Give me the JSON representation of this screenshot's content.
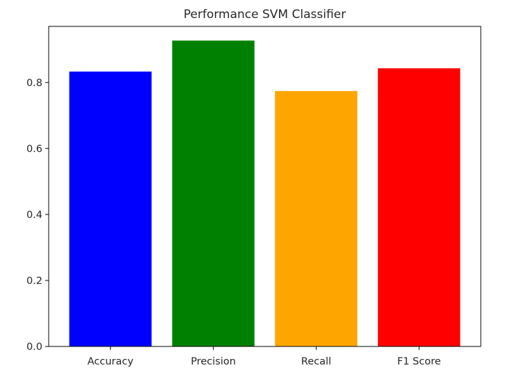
{
  "chart_data": {
    "type": "bar",
    "title": "Performance SVM Classifier",
    "xlabel": "",
    "ylabel": "",
    "categories": [
      "Accuracy",
      "Precision",
      "Recall",
      "F1 Score"
    ],
    "values": [
      0.833,
      0.927,
      0.774,
      0.843
    ],
    "colors": [
      "#0000ff",
      "#008000",
      "#ffa500",
      "#ff0000"
    ],
    "ylim": [
      0,
      0.97
    ],
    "yticks": [
      0.0,
      0.2,
      0.4,
      0.6,
      0.8
    ],
    "ytick_labels": [
      "0.0",
      "0.2",
      "0.4",
      "0.6",
      "0.8"
    ],
    "grid": false,
    "legend": "none"
  }
}
